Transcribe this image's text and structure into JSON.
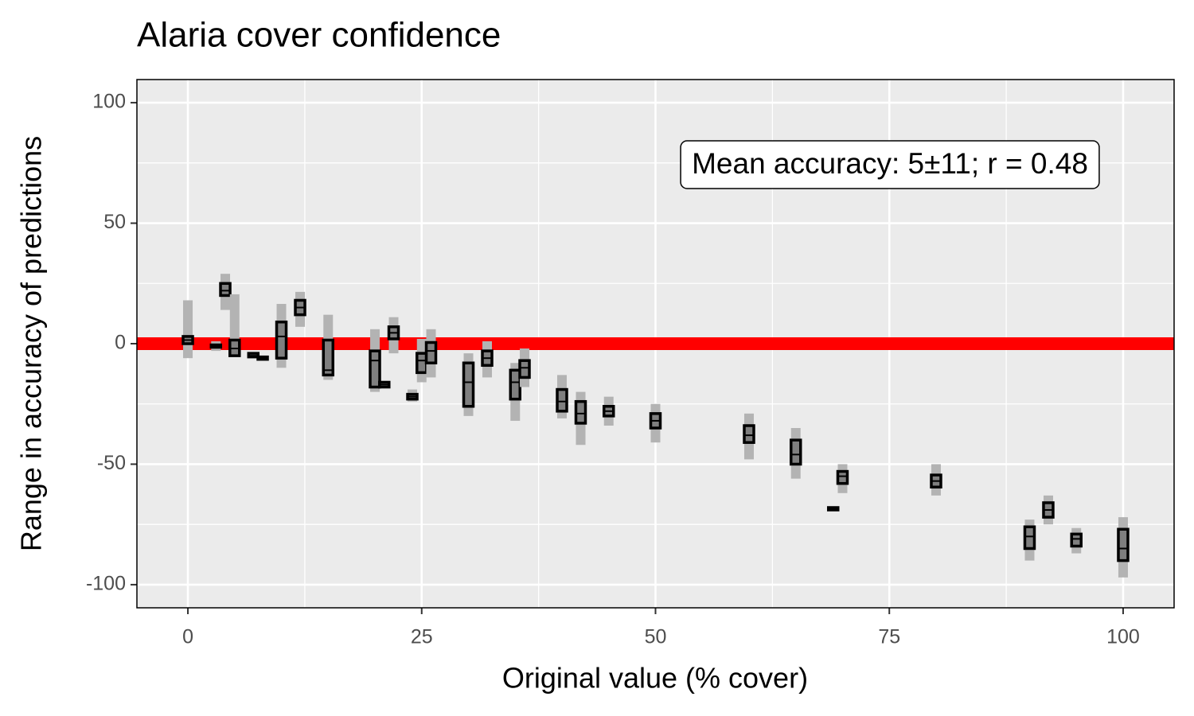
{
  "chart_data": {
    "type": "crossbar",
    "title": "Alaria cover confidence",
    "x_label": "Original value (% cover)",
    "y_label": "Range in accuracy of predictions",
    "annotation": "Mean accuracy: 5±11; r = 0.48",
    "xlim": [
      -5.45,
      105.45
    ],
    "xticks": [
      0,
      25,
      50,
      75,
      100
    ],
    "xminor": [
      12.5,
      37.5,
      62.5,
      87.5
    ],
    "ylim": [
      -109.6,
      109.6
    ],
    "yticks": [
      -100,
      -50,
      0,
      50,
      100
    ],
    "yminor": [
      -75,
      -25,
      25,
      75
    ],
    "grid": true,
    "hline": 0,
    "hline_color": "#ff0000",
    "range_color": "#b3b3b3",
    "box_color": "#7f7f7f",
    "edge_color": "#000000",
    "x": [
      0,
      3,
      4,
      5,
      7,
      8,
      10,
      12,
      15,
      20,
      21,
      22,
      24,
      25,
      26,
      30,
      32,
      35,
      36,
      40,
      42,
      45,
      50,
      60,
      65,
      69,
      70,
      80,
      90,
      92,
      95,
      100
    ],
    "low": [
      -6,
      -3,
      14,
      -5,
      -5.5,
      -6.5,
      -10,
      7,
      -15,
      -20,
      -18,
      -4,
      -24,
      -16,
      -14,
      -30,
      -14,
      -32,
      -18,
      -31,
      -42,
      -34,
      -41,
      -48,
      -56,
      -69,
      -62,
      -63,
      -90,
      -75,
      -87,
      -97
    ],
    "q1": [
      0,
      -1.5,
      20,
      -5,
      -5.5,
      -6.5,
      -6,
      12,
      -13,
      -18,
      -18,
      2,
      -23,
      -12,
      -8,
      -26,
      -9,
      -23,
      -14,
      -28,
      -33,
      -30,
      -35,
      -41,
      -50,
      -69,
      -58,
      -59.5,
      -85,
      -72,
      -84,
      -90
    ],
    "median": [
      1.5,
      -1,
      22,
      -2,
      -5,
      -6,
      3,
      15,
      -11,
      -7,
      -17,
      4.5,
      -22,
      -7,
      -3,
      -16,
      -6,
      -16,
      -10,
      -24,
      -29,
      -28,
      -32,
      -38,
      -46,
      -68.5,
      -55,
      -57,
      -80,
      -69,
      -81,
      -85
    ],
    "q3": [
      3,
      -0.5,
      25,
      1.5,
      -4,
      -5.5,
      9,
      18,
      1.5,
      -3,
      -16,
      7,
      -21,
      -4,
      0.5,
      -8,
      -3,
      -11,
      -7,
      -19,
      -24,
      -26,
      -29,
      -34,
      -40,
      -68,
      -53,
      -54.5,
      -76,
      -66,
      -79,
      -77
    ],
    "high": [
      18,
      1,
      29,
      20.5,
      -4,
      -5,
      16.5,
      21.5,
      12,
      6,
      -16,
      11,
      -19,
      2,
      6,
      -4,
      1,
      -8,
      -2,
      -13,
      -20,
      -22,
      -25,
      -29,
      -35,
      -68,
      -50,
      -50,
      -73,
      -63,
      -76.5,
      -72
    ]
  }
}
